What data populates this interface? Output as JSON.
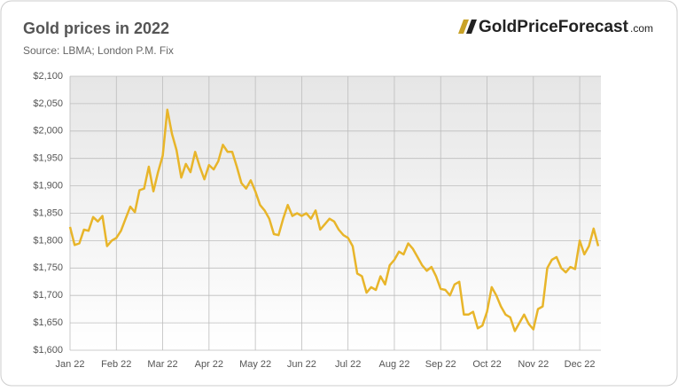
{
  "logo": {
    "brand": "GoldPriceForecast",
    "domain": ".com"
  },
  "chart_data": {
    "type": "line",
    "title": "Gold prices in 2022",
    "subtitle": "Source: LBMA; London P.M. Fix",
    "categories": [
      "Jan 22",
      null,
      null,
      null,
      null,
      null,
      null,
      null,
      null,
      null,
      "Feb 22",
      null,
      null,
      null,
      null,
      null,
      null,
      null,
      null,
      null,
      "Mar 22",
      null,
      null,
      null,
      null,
      null,
      null,
      null,
      null,
      null,
      "Apr 22",
      null,
      null,
      null,
      null,
      null,
      null,
      null,
      null,
      null,
      "May 22",
      null,
      null,
      null,
      null,
      null,
      null,
      null,
      null,
      null,
      "Jun 22",
      null,
      null,
      null,
      null,
      null,
      null,
      null,
      null,
      null,
      "Jul 22",
      null,
      null,
      null,
      null,
      null,
      null,
      null,
      null,
      null,
      "Aug 22",
      null,
      null,
      null,
      null,
      null,
      null,
      null,
      null,
      null,
      "Sep 22",
      null,
      null,
      null,
      null,
      null,
      null,
      null,
      null,
      null,
      "Oct 22",
      null,
      null,
      null,
      null,
      null,
      null,
      null,
      null,
      null,
      "Nov 22",
      null,
      null,
      null,
      null,
      null,
      null,
      null,
      null,
      null,
      "Dec 22",
      null,
      null,
      null,
      null
    ],
    "values": [
      1825,
      1792,
      1795,
      1820,
      1818,
      1843,
      1835,
      1845,
      1790,
      1800,
      1805,
      1818,
      1840,
      1862,
      1852,
      1892,
      1895,
      1935,
      1890,
      1925,
      1955,
      2039,
      1995,
      1965,
      1915,
      1940,
      1925,
      1962,
      1935,
      1912,
      1938,
      1930,
      1945,
      1975,
      1962,
      1962,
      1935,
      1905,
      1895,
      1910,
      1890,
      1865,
      1855,
      1840,
      1812,
      1810,
      1840,
      1865,
      1845,
      1850,
      1845,
      1850,
      1840,
      1855,
      1820,
      1830,
      1840,
      1835,
      1820,
      1810,
      1805,
      1790,
      1740,
      1735,
      1705,
      1715,
      1710,
      1735,
      1720,
      1755,
      1765,
      1780,
      1775,
      1795,
      1785,
      1770,
      1755,
      1745,
      1752,
      1735,
      1712,
      1710,
      1700,
      1720,
      1725,
      1665,
      1665,
      1670,
      1640,
      1645,
      1670,
      1715,
      1700,
      1680,
      1665,
      1660,
      1635,
      1650,
      1665,
      1648,
      1638,
      1675,
      1680,
      1750,
      1765,
      1770,
      1750,
      1742,
      1752,
      1748,
      1800,
      1775,
      1790,
      1822,
      1790
    ],
    "color": "#e8b52a",
    "ylim": [
      1600,
      2100
    ],
    "yticks": [
      {
        "value": 1600,
        "label": "$1,600"
      },
      {
        "value": 1650,
        "label": "$1,650"
      },
      {
        "value": 1700,
        "label": "$1,700"
      },
      {
        "value": 1750,
        "label": "$1,750"
      },
      {
        "value": 1800,
        "label": "$1,800"
      },
      {
        "value": 1850,
        "label": "$1,850"
      },
      {
        "value": 1900,
        "label": "$1,900"
      },
      {
        "value": 1950,
        "label": "$1,950"
      },
      {
        "value": 2000,
        "label": "$2,000"
      },
      {
        "value": 2050,
        "label": "$2,050"
      },
      {
        "value": 2100,
        "label": "$2,100"
      }
    ],
    "grid": true
  }
}
